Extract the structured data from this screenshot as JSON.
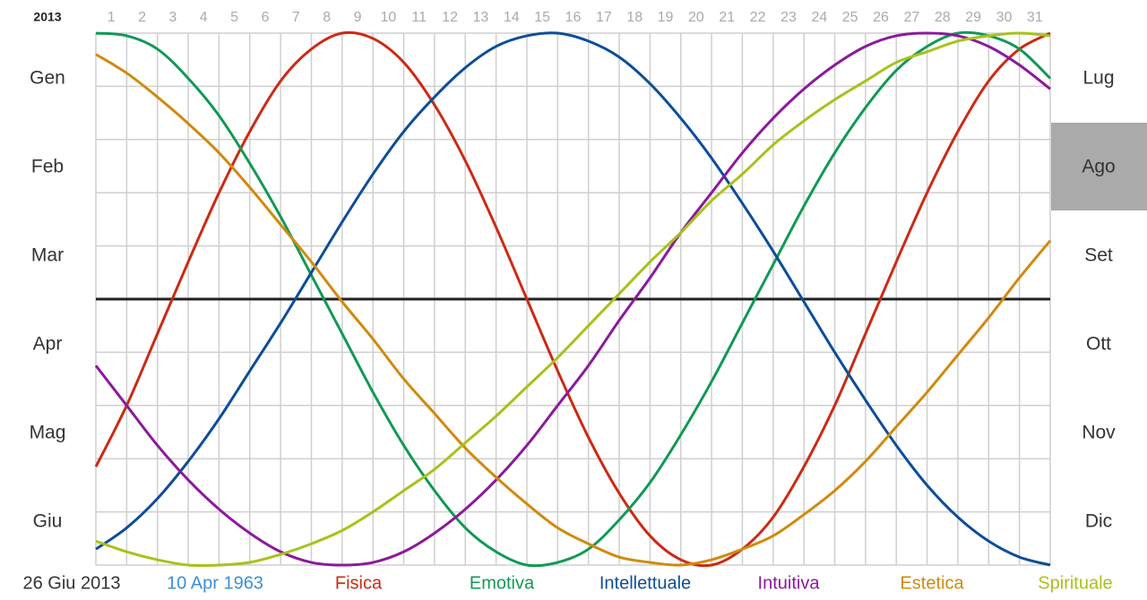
{
  "header": {
    "year": "2013"
  },
  "months_left": [
    "Gen",
    "Feb",
    "Mar",
    "Apr",
    "Mag",
    "Giu"
  ],
  "months_right": [
    "Lug",
    "Ago",
    "Set",
    "Ott",
    "Nov",
    "Dic"
  ],
  "footer": {
    "date": "26 Giu 2013",
    "birth": "10 Apr 1963"
  },
  "chart_data": {
    "type": "line",
    "x": [
      0.5,
      1.5,
      2.5,
      3.5,
      4.5,
      5.5,
      6.5,
      7.5,
      8.5,
      9.5,
      10.5,
      11.5,
      12.5,
      13.5,
      14.5,
      15.5,
      16.5,
      17.5,
      18.5,
      19.5,
      20.5,
      21.5,
      22.5,
      23.5,
      24.5,
      25.5,
      26.5,
      27.5,
      28.5,
      29.5,
      30.5,
      31.5
    ],
    "xlim": [
      0.5,
      31.5
    ],
    "xticks": [
      1,
      2,
      3,
      4,
      5,
      6,
      7,
      8,
      9,
      10,
      11,
      12,
      13,
      14,
      15,
      16,
      17,
      18,
      19,
      20,
      21,
      22,
      23,
      24,
      25,
      26,
      27,
      28,
      29,
      30,
      31
    ],
    "ylim": [
      -100,
      100
    ],
    "yticks": [
      -100,
      -80,
      -60,
      -40,
      -20,
      0,
      20,
      40,
      60,
      80,
      100
    ],
    "grid": true,
    "series": [
      {
        "name": "Fisica",
        "color": "#cc2a14",
        "values": [
          -63,
          -40,
          -13,
          14,
          40,
          63,
          82,
          94,
          100,
          98,
          89,
          73,
          52,
          27,
          0,
          -27,
          -52,
          -73,
          -89,
          -98,
          -100,
          -94,
          -82,
          -63,
          -40,
          -13,
          14,
          40,
          63,
          82,
          94,
          100
        ]
      },
      {
        "name": "Emotiva",
        "color": "#119955",
        "values": [
          100,
          99,
          94,
          83,
          69,
          51,
          31,
          9,
          -13,
          -35,
          -55,
          -72,
          -86,
          -95,
          -100,
          -99,
          -94,
          -83,
          -69,
          -51,
          -31,
          -9,
          13,
          35,
          55,
          72,
          86,
          95,
          100,
          99,
          94,
          83
        ]
      },
      {
        "name": "Intellettuale",
        "color": "#0d4d99",
        "values": [
          -94,
          -86,
          -75,
          -61,
          -45,
          -27,
          -9,
          10,
          29,
          47,
          63,
          76,
          87,
          95,
          99,
          100,
          97,
          91,
          81,
          68,
          53,
          36,
          18,
          -1,
          -20,
          -38,
          -55,
          -70,
          -82,
          -91,
          -97,
          -100
        ]
      },
      {
        "name": "Intuitiva",
        "color": "#8b1a9b",
        "values": [
          -25,
          -40,
          -55,
          -68,
          -79,
          -88,
          -95,
          -99,
          -100,
          -99,
          -95,
          -88,
          -79,
          -68,
          -55,
          -40,
          -25,
          -8,
          8,
          25,
          40,
          55,
          68,
          79,
          88,
          95,
          99,
          100,
          99,
          95,
          88,
          79
        ]
      },
      {
        "name": "Estetica",
        "color": "#d08a0e",
        "values": [
          92,
          85,
          76,
          66,
          55,
          42,
          28,
          14,
          -1,
          -15,
          -30,
          -43,
          -56,
          -67,
          -77,
          -86,
          -92,
          -97,
          -99,
          -100,
          -98,
          -94,
          -89,
          -81,
          -72,
          -61,
          -48,
          -35,
          -21,
          -7,
          8,
          22
        ]
      },
      {
        "name": "Spirituale",
        "color": "#a8c21a",
        "values": [
          -91,
          -95,
          -98,
          -100,
          -100,
          -99,
          -96,
          -92,
          -87,
          -80,
          -72,
          -64,
          -54,
          -44,
          -33,
          -22,
          -10,
          2,
          14,
          25,
          37,
          47,
          58,
          67,
          75,
          82,
          89,
          93,
          97,
          99,
          100,
          99
        ]
      }
    ]
  }
}
